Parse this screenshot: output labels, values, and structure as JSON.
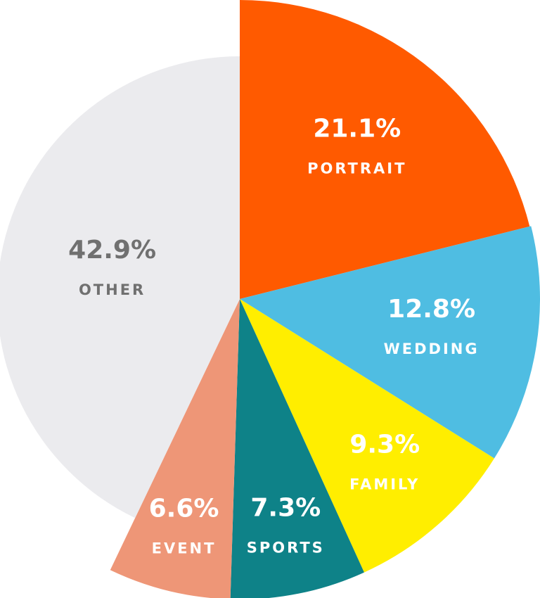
{
  "chart_data": {
    "type": "pie",
    "categories": [
      "PORTRAIT",
      "WEDDING",
      "FAMILY",
      "SPORTS",
      "EVENT",
      "OTHER"
    ],
    "values": [
      21.1,
      12.8,
      9.3,
      7.3,
      6.6,
      42.9
    ],
    "value_labels": [
      "21.1%",
      "12.8%",
      "9.3%",
      "7.3%",
      "6.6%",
      "42.9%"
    ],
    "colors": [
      "#ff5a00",
      "#4fbde2",
      "#ffee00",
      "#0e8288",
      "#ee9677",
      "#ebebee"
    ]
  }
}
